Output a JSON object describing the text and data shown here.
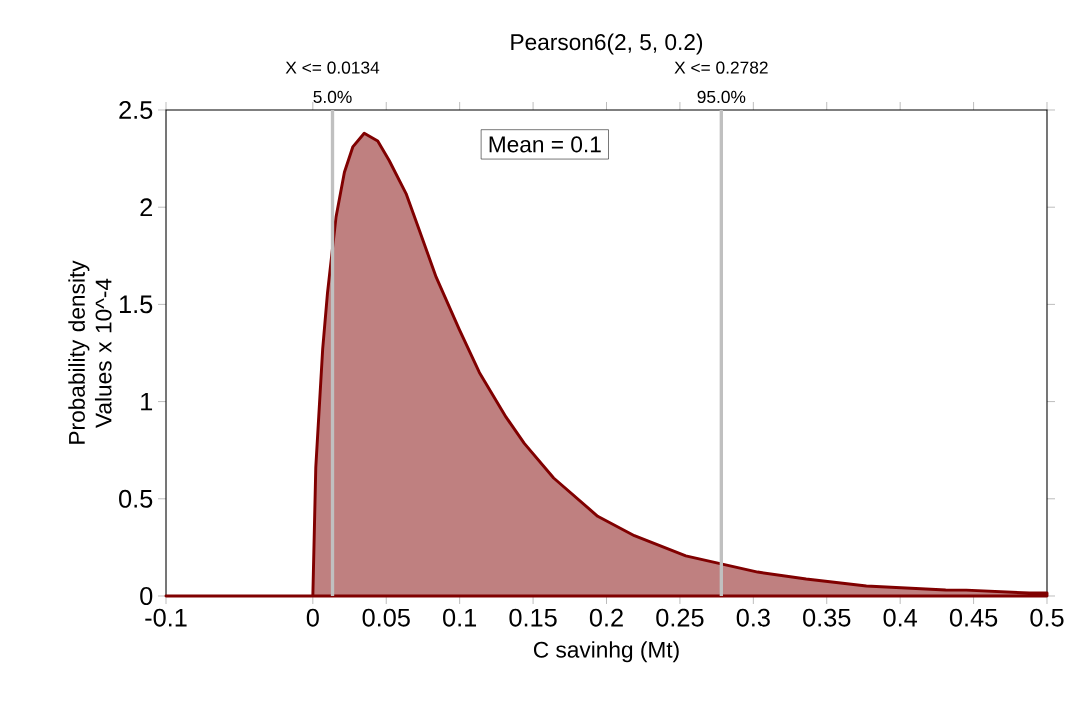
{
  "chart_data": {
    "type": "area",
    "title": "Pearson6(2, 5, 0.2)",
    "xlabel": "C savinhg (Mt)",
    "ylabel": "Probability density Values x 10^-4",
    "x": [
      -0.1,
      0,
      0.002,
      0.0067,
      0.01,
      0.0158,
      0.0215,
      0.0272,
      0.035,
      0.0442,
      0.052,
      0.0635,
      0.0726,
      0.084,
      0.0998,
      0.1134,
      0.1316,
      0.144,
      0.164,
      0.194,
      0.219,
      0.254,
      0.303,
      0.336,
      0.377,
      0.431,
      0.445,
      0.488,
      0.5
    ],
    "series": [
      {
        "color": "#800000",
        "values": [
          0,
          0,
          0.66,
          1.27,
          1.56,
          1.95,
          2.18,
          2.31,
          2.38,
          2.34,
          2.24,
          2.07,
          1.88,
          1.64,
          1.37,
          1.15,
          0.92,
          0.785,
          0.607,
          0.41,
          0.31,
          0.206,
          0.123,
          0.087,
          0.051,
          0.031,
          0.03,
          0.015,
          0.015
        ]
      }
    ],
    "xlim": [
      -0.1,
      0.5
    ],
    "ylim": [
      0,
      2.5
    ],
    "xticks": [
      -0.1,
      0,
      0.05,
      0.1,
      0.15,
      0.2,
      0.25,
      0.3,
      0.35,
      0.4,
      0.45,
      0.5
    ],
    "yticks": [
      0,
      0.5,
      1,
      1.5,
      2,
      2.5
    ],
    "ref_lines": [
      {
        "axis": "x",
        "value": 0.0134,
        "label": "X <= 0.0134",
        "color": "#c0c0c0"
      },
      {
        "axis": "x",
        "value": 0.2782,
        "label": "X <= 0.2782",
        "color": "#c0c0c0"
      }
    ],
    "annotations": [
      "Mean = 0.1",
      {
        "text": "5.0%",
        "x": 0.0134,
        "y": 2.5
      },
      {
        "text": "95.0%",
        "x": 0.2782,
        "y": 2.5
      }
    ]
  }
}
